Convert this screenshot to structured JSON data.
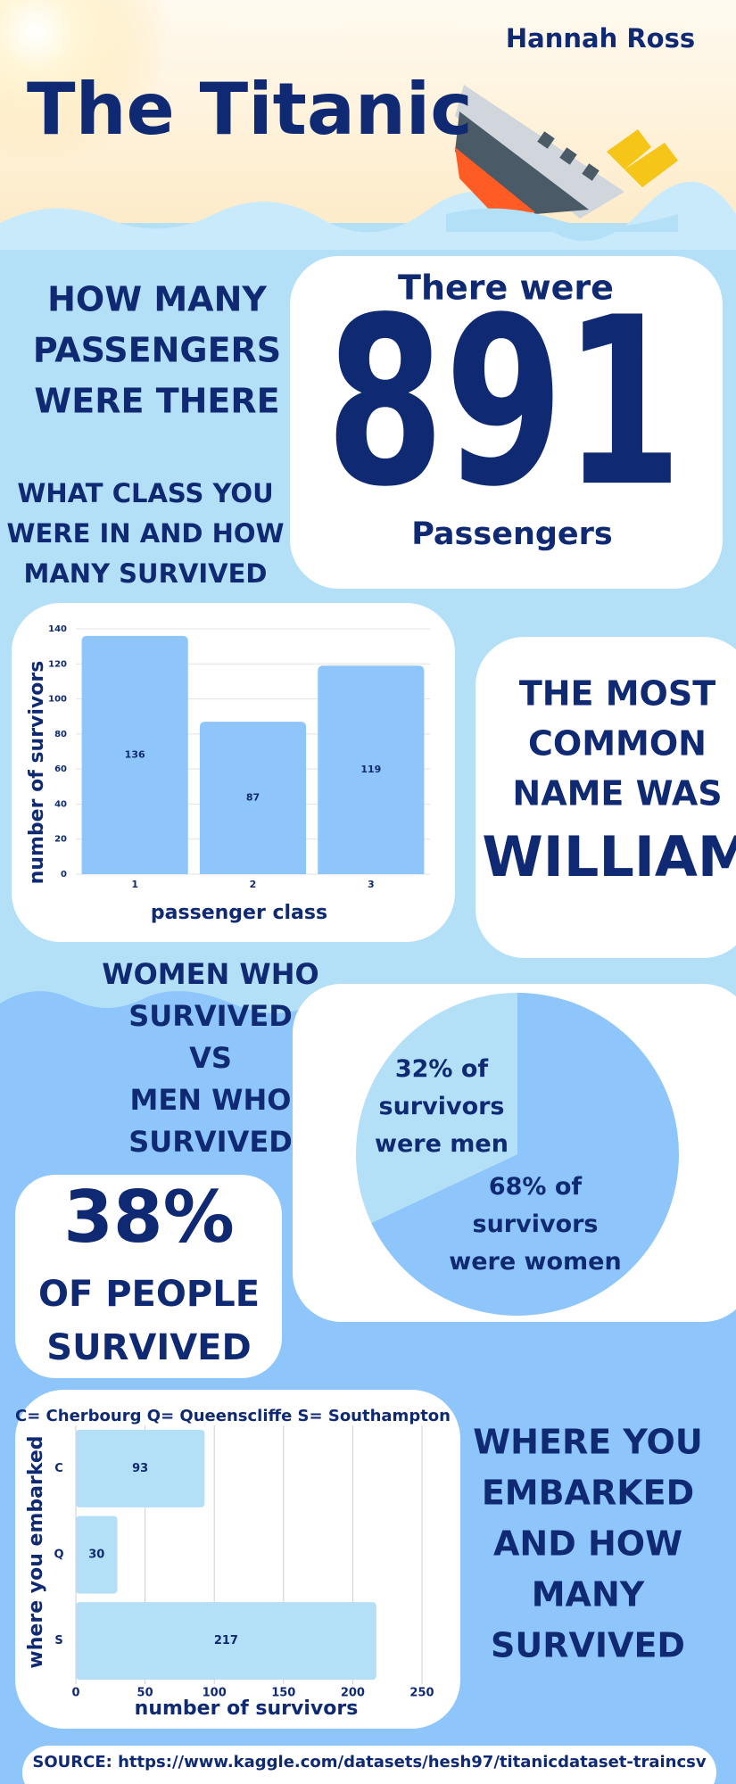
{
  "author": "Hannah Ross",
  "title": "The Titanic",
  "passengers": {
    "question": [
      "HOW MANY",
      "PASSENGERS",
      "WERE THERE"
    ],
    "intro": "There were",
    "count": 891,
    "unit": "Passengers"
  },
  "class_question": [
    "WHAT CLASS YOU",
    "WERE IN  AND HOW",
    "MANY SURVIVED"
  ],
  "common_name": {
    "lines": [
      "THE MOST",
      "COMMON",
      "NAME WAS"
    ],
    "name": "WILLIAM"
  },
  "gender_question": [
    "WOMEN WHO",
    "SURVIVED",
    "VS",
    "MEN WHO",
    "SURVIVED"
  ],
  "survival": {
    "stat": "38%",
    "lines": [
      "OF PEOPLE",
      "SURVIVED"
    ]
  },
  "embark_question": [
    "WHERE YOU",
    "EMBARKED",
    "AND HOW",
    "MANY",
    "SURVIVED"
  ],
  "source": "SOURCE: https://www.kaggle.com/datasets/hesh97/titanicdataset-traincsv",
  "chart_data": [
    {
      "type": "bar",
      "categories": [
        "1",
        "2",
        "3"
      ],
      "values": [
        136,
        87,
        119
      ],
      "color": "#8ec5fb",
      "ylim": [
        0,
        140
      ],
      "yticks": [
        0,
        20,
        40,
        60,
        80,
        100,
        120,
        140
      ],
      "grid": true,
      "xlabel": "passenger class",
      "ylabel": "number of survivors"
    },
    {
      "type": "pie",
      "values": [
        32,
        68
      ],
      "colors": [
        "#b3e0f7",
        "#8ec5fb"
      ],
      "value_labels": [
        "32% of survivors were men",
        "68% of survivors were women"
      ]
    },
    {
      "type": "hbar",
      "title": "C= Cherbourg Q= Queenscliffe S= Southampton",
      "categories": [
        "C",
        "Q",
        "S"
      ],
      "values": [
        93,
        30,
        217
      ],
      "color": "#b3e0f7",
      "xlim": [
        0,
        250
      ],
      "xticks": [
        0,
        50,
        100,
        150,
        200,
        250
      ],
      "grid": true,
      "xlabel": "number of survivors",
      "ylabel": "where you embarked"
    }
  ]
}
